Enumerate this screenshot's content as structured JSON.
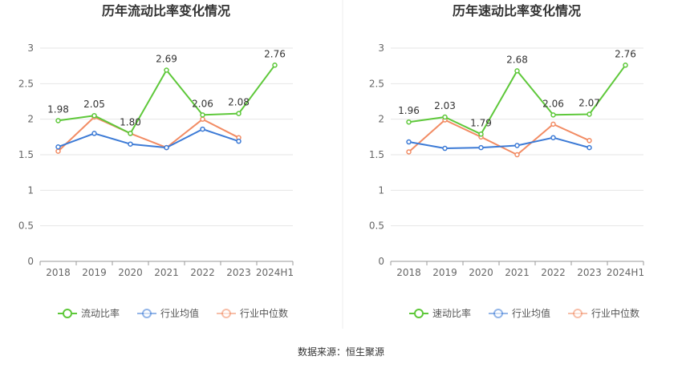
{
  "chart_data": [
    {
      "type": "line",
      "title": "历年流动比率变化情况",
      "categories": [
        "2018",
        "2019",
        "2020",
        "2021",
        "2022",
        "2023",
        "2024H1"
      ],
      "ylim": [
        0,
        3
      ],
      "yticks": [
        "0",
        "0.5",
        "1",
        "1.5",
        "2",
        "2.5",
        "3"
      ],
      "series": [
        {
          "name": "流动比率",
          "color": "#5ec83a",
          "values": [
            1.98,
            2.05,
            1.8,
            2.69,
            2.06,
            2.08,
            2.76
          ],
          "labels": [
            "1.98",
            "2.05",
            "1.80",
            "2.69",
            "2.06",
            "2.08",
            "2.76"
          ]
        },
        {
          "name": "行业均值",
          "color": "#3d7bd6",
          "values": [
            1.61,
            1.8,
            1.65,
            1.6,
            1.86,
            1.69,
            null
          ]
        },
        {
          "name": "行业中位数",
          "color": "#f28c64",
          "values": [
            1.55,
            2.03,
            1.8,
            1.6,
            2.0,
            1.74,
            null
          ]
        }
      ]
    },
    {
      "type": "line",
      "title": "历年速动比率变化情况",
      "categories": [
        "2018",
        "2019",
        "2020",
        "2021",
        "2022",
        "2023",
        "2024H1"
      ],
      "ylim": [
        0,
        3
      ],
      "yticks": [
        "0",
        "0.5",
        "1",
        "1.5",
        "2",
        "2.5",
        "3"
      ],
      "series": [
        {
          "name": "速动比率",
          "color": "#5ec83a",
          "values": [
            1.96,
            2.03,
            1.79,
            2.68,
            2.06,
            2.07,
            2.76
          ],
          "labels": [
            "1.96",
            "2.03",
            "1.79",
            "2.68",
            "2.06",
            "2.07",
            "2.76"
          ]
        },
        {
          "name": "行业均值",
          "color": "#3d7bd6",
          "values": [
            1.68,
            1.59,
            1.6,
            1.63,
            1.74,
            1.6,
            null
          ]
        },
        {
          "name": "行业中位数",
          "color": "#f28c64",
          "values": [
            1.54,
            1.99,
            1.75,
            1.5,
            1.93,
            1.7,
            null
          ]
        }
      ]
    }
  ],
  "footer": {
    "source": "数据来源：恒生聚源"
  }
}
